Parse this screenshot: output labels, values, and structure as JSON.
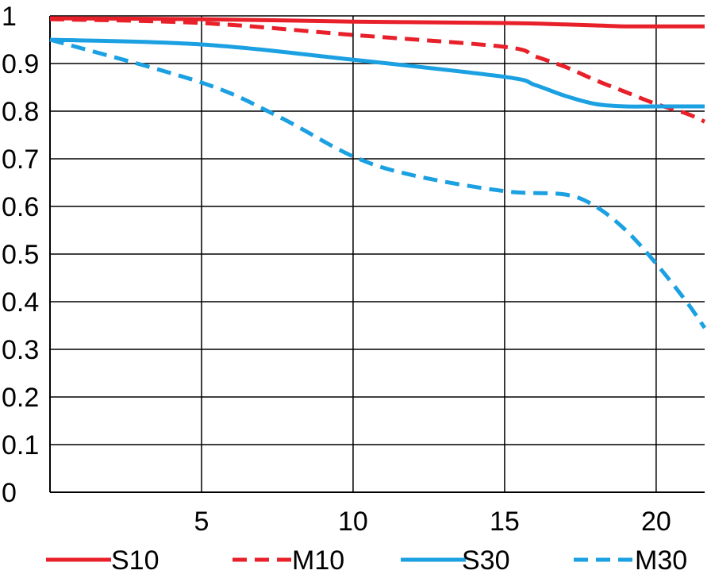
{
  "chart_data": {
    "type": "line",
    "title": "",
    "xlabel": "",
    "ylabel": "",
    "xlim": [
      0,
      21.6
    ],
    "ylim": [
      0,
      1
    ],
    "grid": true,
    "legend_placement": "bottom",
    "x_ticks": [
      5,
      10,
      15,
      20
    ],
    "x_tick_labels": [
      "5",
      "10",
      "15",
      "20"
    ],
    "y_ticks": [
      0,
      0.1,
      0.2,
      0.3,
      0.4,
      0.5,
      0.6,
      0.7,
      0.8,
      0.9,
      1
    ],
    "y_tick_labels": [
      "0",
      "0.1",
      "0.2",
      "0.3",
      "0.4",
      "0.5",
      "0.6",
      "0.7",
      "0.8",
      "0.9",
      "1"
    ],
    "series": [
      {
        "name": "S10",
        "color": "#e8202a",
        "style": "solid",
        "x": [
          0,
          5,
          10,
          15,
          17,
          18,
          19,
          20,
          21.6
        ],
        "y": [
          0.995,
          0.993,
          0.988,
          0.985,
          0.982,
          0.98,
          0.978,
          0.978,
          0.978
        ]
      },
      {
        "name": "M10",
        "color": "#e8202a",
        "style": "dashed",
        "x": [
          0,
          5,
          10,
          15,
          16,
          17,
          18,
          19,
          20,
          21,
          21.6
        ],
        "y": [
          0.993,
          0.985,
          0.96,
          0.935,
          0.915,
          0.893,
          0.865,
          0.84,
          0.815,
          0.795,
          0.778
        ]
      },
      {
        "name": "S30",
        "color": "#1ba0e2",
        "style": "solid",
        "x": [
          0,
          5,
          10,
          15,
          16,
          17,
          18,
          19,
          20,
          21.6
        ],
        "y": [
          0.95,
          0.94,
          0.908,
          0.872,
          0.855,
          0.832,
          0.815,
          0.81,
          0.81,
          0.81
        ]
      },
      {
        "name": "M30",
        "color": "#1ba0e2",
        "style": "dashed",
        "x": [
          0,
          5,
          7.5,
          10,
          12,
          15,
          17,
          18,
          19,
          20,
          21,
          21.6
        ],
        "y": [
          0.95,
          0.86,
          0.79,
          0.705,
          0.665,
          0.632,
          0.625,
          0.6,
          0.55,
          0.48,
          0.4,
          0.345
        ]
      }
    ]
  }
}
